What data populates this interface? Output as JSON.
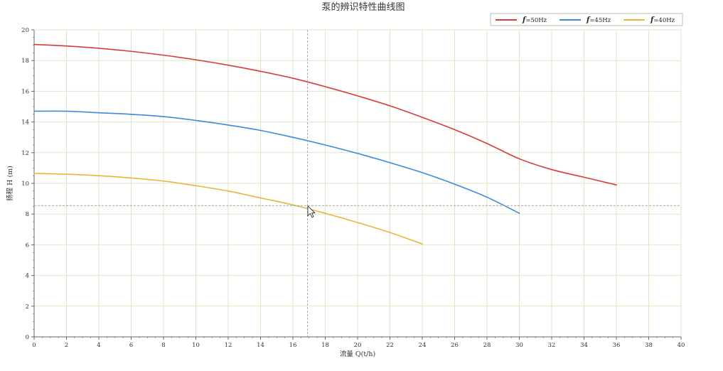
{
  "chart_data": {
    "type": "line",
    "title": "泵的辨识特性曲线图",
    "xlabel": "流量 Q(t/h)",
    "ylabel": "扬程 H (m)",
    "xlim": [
      0,
      40
    ],
    "ylim": [
      0,
      20
    ],
    "x_ticks": [
      "0",
      "2",
      "4",
      "6",
      "8",
      "10",
      "12",
      "14",
      "16",
      "18",
      "20",
      "22",
      "24",
      "26",
      "28",
      "30",
      "32",
      "34",
      "36",
      "38",
      "40"
    ],
    "y_ticks": [
      "0",
      "2",
      "4",
      "6",
      "8",
      "10",
      "12",
      "14",
      "16",
      "18",
      "20"
    ],
    "grid": true,
    "legend_position": "top-right",
    "crosshair": {
      "x": 16.9,
      "y": 8.55
    },
    "series": [
      {
        "name_prefix": "f",
        "name_suffix": "=50Hz",
        "color": "#d93a3a",
        "x": [
          0,
          2,
          4,
          6,
          8,
          10,
          12,
          14,
          16,
          18,
          20,
          22,
          24,
          26,
          28,
          30,
          32,
          34,
          36
        ],
        "y": [
          19.05,
          18.95,
          18.8,
          18.6,
          18.35,
          18.05,
          17.7,
          17.3,
          16.85,
          16.3,
          15.7,
          15.05,
          14.3,
          13.5,
          12.6,
          11.6,
          10.9,
          10.4,
          9.9
        ]
      },
      {
        "name_prefix": "f",
        "name_suffix": "=45Hz",
        "color": "#3d8ad9",
        "x": [
          0,
          2,
          4,
          6,
          8,
          10,
          12,
          14,
          16,
          18,
          20,
          22,
          24,
          26,
          28,
          30
        ],
        "y": [
          14.7,
          14.7,
          14.6,
          14.5,
          14.35,
          14.1,
          13.8,
          13.45,
          13.0,
          12.5,
          11.95,
          11.35,
          10.7,
          9.95,
          9.1,
          8.05
        ]
      },
      {
        "name_prefix": "f",
        "name_suffix": "=40Hz",
        "color": "#e8b53c",
        "x": [
          0,
          2,
          4,
          6,
          8,
          10,
          12,
          14,
          16,
          18,
          20,
          22,
          24
        ],
        "y": [
          10.65,
          10.6,
          10.5,
          10.35,
          10.15,
          9.85,
          9.5,
          9.05,
          8.6,
          8.05,
          7.45,
          6.8,
          6.05
        ]
      }
    ]
  },
  "colors": {
    "grid": "#dfe6c4",
    "axis": "#666666",
    "crosshair": "#999999",
    "cursor_fill": "#ffffff",
    "cursor_stroke": "#333333"
  }
}
